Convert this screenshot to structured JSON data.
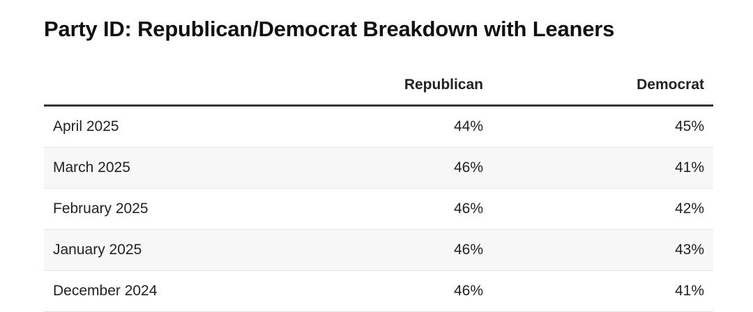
{
  "chart_data": {
    "type": "table",
    "title": "Party ID: Republican/Democrat Breakdown with Leaners",
    "columns": [
      "",
      "Republican",
      "Democrat"
    ],
    "rows": [
      {
        "label": "April 2025",
        "republican": "44%",
        "democrat": "45%"
      },
      {
        "label": "March 2025",
        "republican": "46%",
        "democrat": "41%"
      },
      {
        "label": "February 2025",
        "republican": "46%",
        "democrat": "42%"
      },
      {
        "label": "January 2025",
        "republican": "46%",
        "democrat": "43%"
      },
      {
        "label": "December 2024",
        "republican": "46%",
        "democrat": "41%"
      }
    ],
    "series": [
      {
        "name": "Republican",
        "values": [
          44,
          46,
          46,
          46,
          46
        ]
      },
      {
        "name": "Democrat",
        "values": [
          45,
          41,
          42,
          43,
          41
        ]
      }
    ],
    "categories": [
      "April 2025",
      "March 2025",
      "February 2025",
      "January 2025",
      "December 2024"
    ]
  }
}
